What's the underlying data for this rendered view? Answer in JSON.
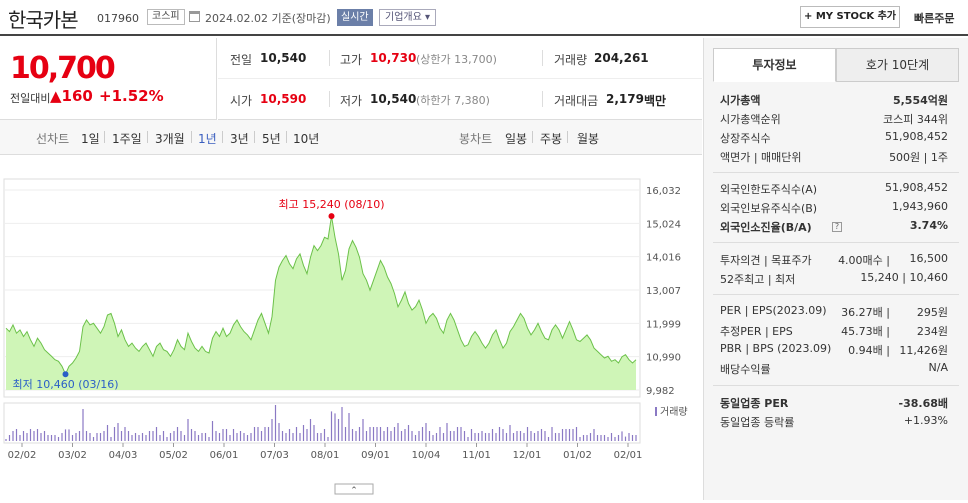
{
  "header": {
    "name": "한국카본",
    "code": "017960",
    "market": "코스피",
    "date_text": "2024.02.02  기준(장마감)",
    "realtime": "실시간",
    "overview": "기업개요 ▾",
    "mystock": "+ MY STOCK 추가",
    "quick_order": "빠른주문"
  },
  "price": {
    "current": "10,700",
    "change_label": "전일대비",
    "change": "▲160",
    "change_pct": "+1.52%"
  },
  "stats": {
    "prev_label": "전일",
    "prev": "10,540",
    "high_label": "고가",
    "high": "10,730",
    "upper_limit": "(상한가 13,700)",
    "volume_label": "거래량",
    "volume": "204,261",
    "open_label": "시가",
    "open": "10,590",
    "low_label": "저가",
    "low": "10,540",
    "lower_limit": "(하한가 7,380)",
    "amount_label": "거래대금",
    "amount": "2,179",
    "amount_unit": "백만"
  },
  "toolbar": {
    "line_label": "선차트",
    "periods": [
      "1일",
      "1주일",
      "3개월",
      "1년",
      "3년",
      "5년",
      "10년"
    ],
    "active_period": "1년",
    "candle_label": "봉차트",
    "candles": [
      "일봉",
      "주봉",
      "월봉"
    ]
  },
  "chart_data": {
    "type": "area",
    "y_ticks": [
      "16,032",
      "15,024",
      "14,016",
      "13,007",
      "11,999",
      "10,990",
      "9,982"
    ],
    "ylim": [
      9982,
      16032
    ],
    "x_ticks": [
      "02/02",
      "03/02",
      "04/03",
      "05/02",
      "06/01",
      "07/03",
      "08/01",
      "09/01",
      "10/04",
      "11/01",
      "12/01",
      "01/02",
      "02/01"
    ],
    "max_label": "최고 15,240 (08/10)",
    "min_label": "최저 10,460 (03/16)",
    "volume_label": "거래량",
    "values": [
      11850,
      11750,
      11950,
      11700,
      11800,
      11600,
      11750,
      11500,
      11300,
      11550,
      11400,
      11200,
      11100,
      11000,
      10900,
      10850,
      10700,
      10460,
      10700,
      10800,
      10950,
      11150,
      11900,
      12100,
      11950,
      12000,
      11850,
      11700,
      11900,
      12250,
      12300,
      12000,
      11600,
      11800,
      11500,
      11300,
      11400,
      11250,
      11150,
      11300,
      11400,
      11200,
      11000,
      11300,
      11400,
      11200,
      11150,
      11000,
      11200,
      11500,
      11300,
      11200,
      11700,
      11450,
      11250,
      11150,
      11300,
      11150,
      11100,
      11550,
      11750,
      11600,
      11850,
      11600,
      11700,
      11950,
      12100,
      11900,
      11750,
      11650,
      11500,
      11800,
      12100,
      12300,
      12000,
      11700,
      12200,
      13300,
      13700,
      13900,
      14050,
      13800,
      13650,
      13950,
      14100,
      13750,
      13500,
      14000,
      14350,
      14200,
      14350,
      14600,
      14550,
      15240,
      14600,
      14100,
      13300,
      13600,
      14250,
      14500,
      14300,
      14000,
      13500,
      13300,
      13000,
      13300,
      13600,
      13900,
      13700,
      13400,
      13200,
      12900,
      12500,
      12700,
      12950,
      12600,
      12400,
      12500,
      12700,
      12400,
      12000,
      12200,
      12300,
      12150,
      11850,
      11700,
      12100,
      12300,
      12100,
      11800,
      11500,
      11300,
      11350,
      11600,
      11750,
      11600,
      11400,
      11250,
      11400,
      11650,
      11800,
      11500,
      11250,
      11400,
      11750,
      11900,
      12100,
      12300,
      12150,
      11850,
      11650,
      11800,
      12000,
      11750,
      11550,
      11500,
      11800,
      11950,
      11800,
      11550,
      11800,
      12050,
      11800,
      11500,
      11450,
      11550,
      11650,
      11500,
      11250,
      11150,
      11050,
      10950,
      11000,
      10850,
      10900,
      10800,
      10990,
      11050,
      10900,
      10800,
      10900
    ]
  },
  "right": {
    "tabs": [
      "투자정보",
      "호가 10단계"
    ],
    "rows": [
      {
        "l": "시가총액",
        "r": "5,554억원"
      },
      {
        "l": "시가총액순위",
        "r": "코스피 344위"
      },
      {
        "l": "상장주식수",
        "r": "51,908,452"
      },
      {
        "l": "액면가 | 매매단위",
        "r": "500원 | 1주"
      },
      {
        "l": "외국인한도주식수(A)",
        "r": "51,908,452"
      },
      {
        "l": "외국인보유주식수(B)",
        "r": "1,943,960"
      },
      {
        "l": "외국인소진율(B/A)",
        "r": "3.74%"
      },
      {
        "l": "투자의견 | 목표주가",
        "m": "4.00매수 |",
        "r": "16,500"
      },
      {
        "l": "52주최고 | 최저",
        "r": "15,240 | 10,460"
      },
      {
        "l": "PER | EPS(2023.09)",
        "m": "36.27배 |",
        "r": "295원"
      },
      {
        "l": "추정PER | EPS",
        "m": "45.73배 |",
        "r": "234원"
      },
      {
        "l": "PBR | BPS (2023.09)",
        "m": "0.94배 |",
        "r": "11,426원"
      },
      {
        "l": "배당수익률",
        "r": "N/A"
      },
      {
        "l": "동일업종 PER",
        "r": "-38.68배"
      },
      {
        "l": "동일업종 등락률",
        "r": "+1.93%"
      }
    ],
    "colors": {
      "up": "#e60012",
      "brand_blue": "#3a5ebf"
    }
  }
}
